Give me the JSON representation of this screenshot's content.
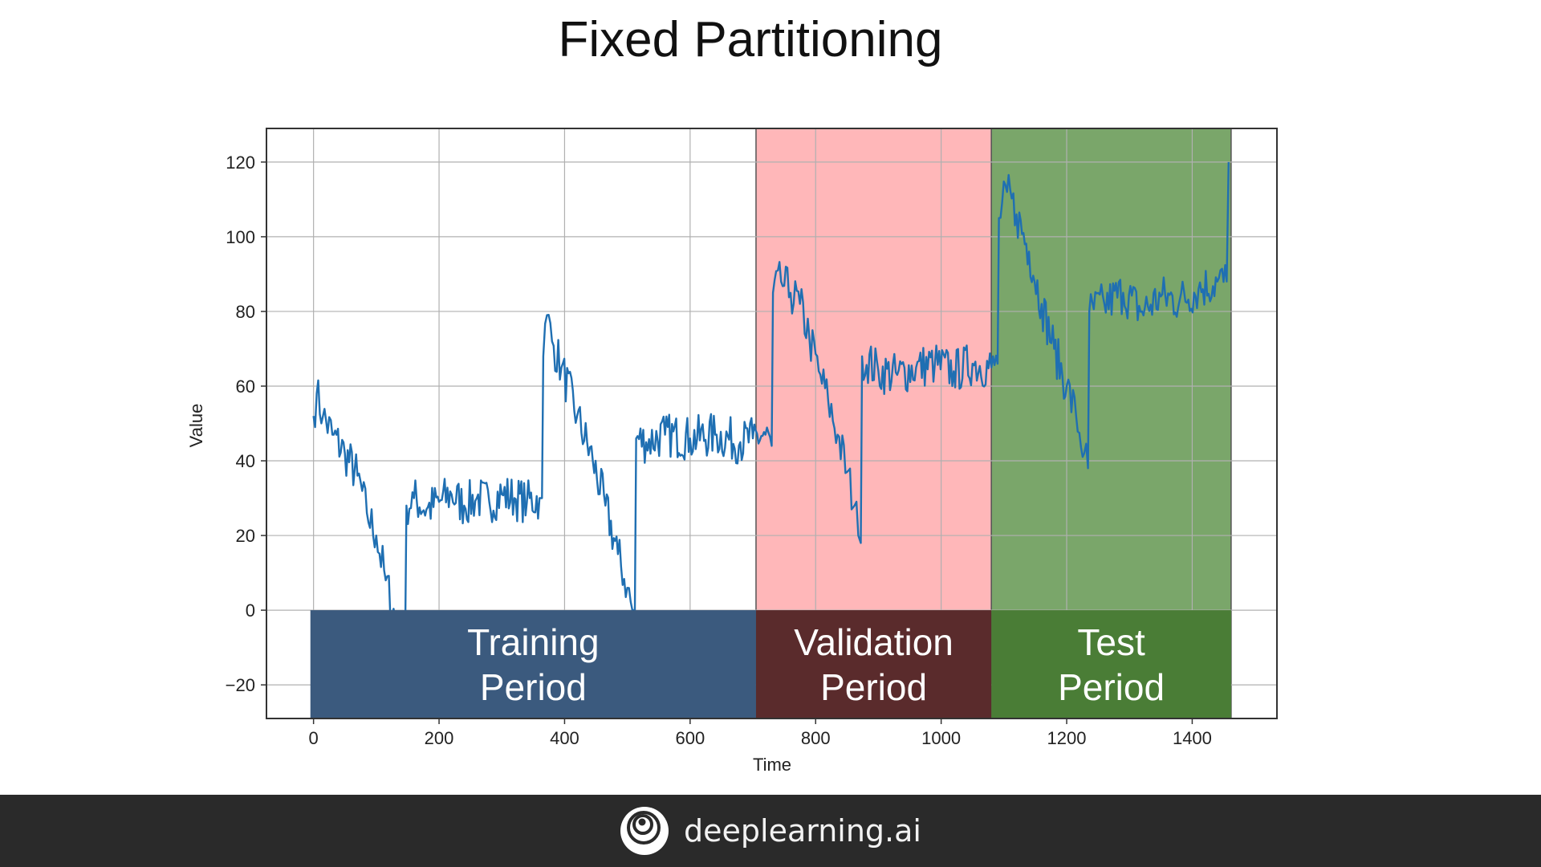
{
  "slide_title": "Fixed Partitioning",
  "footer": {
    "brand": "deeplearning.ai",
    "logo_icon": "deeplearning-logo-icon"
  },
  "chart_data": {
    "type": "line",
    "title": "",
    "xlabel": "Time",
    "ylabel": "Value",
    "xlim": [
      -75,
      1535
    ],
    "ylim": [
      -29,
      129
    ],
    "xticks": [
      0,
      200,
      400,
      600,
      800,
      1000,
      1200,
      1400
    ],
    "xtick_labels": [
      "0",
      "200",
      "400",
      "600",
      "800",
      "1000",
      "1200",
      "1400"
    ],
    "yticks": [
      -20,
      0,
      20,
      40,
      60,
      80,
      100,
      120
    ],
    "ytick_labels": [
      "−20",
      "0",
      "20",
      "40",
      "60",
      "80",
      "100",
      "120"
    ],
    "grid": true,
    "line_color": "#1f6fb2",
    "series": [
      {
        "points": [
          [
            0,
            52
          ],
          [
            5,
            58
          ],
          [
            15,
            52
          ],
          [
            30,
            47
          ],
          [
            50,
            42
          ],
          [
            70,
            36
          ],
          [
            85,
            26
          ],
          [
            100,
            20
          ],
          [
            115,
            8
          ],
          [
            130,
            -2
          ],
          [
            142,
            -21
          ],
          [
            146,
            -8
          ],
          [
            148,
            28
          ],
          [
            160,
            30
          ],
          [
            180,
            27
          ],
          [
            200,
            29
          ],
          [
            220,
            31
          ],
          [
            240,
            28
          ],
          [
            260,
            30
          ],
          [
            280,
            29
          ],
          [
            300,
            31
          ],
          [
            320,
            30
          ],
          [
            340,
            29
          ],
          [
            360,
            30
          ],
          [
            364,
            30
          ],
          [
            366,
            68
          ],
          [
            372,
            79
          ],
          [
            380,
            72
          ],
          [
            395,
            65
          ],
          [
            420,
            52
          ],
          [
            445,
            40
          ],
          [
            465,
            28
          ],
          [
            485,
            15
          ],
          [
            500,
            6
          ],
          [
            508,
            0
          ],
          [
            512,
            0
          ],
          [
            514,
            46
          ],
          [
            530,
            45
          ],
          [
            560,
            47
          ],
          [
            600,
            46
          ],
          [
            640,
            47
          ],
          [
            680,
            45
          ],
          [
            700,
            46
          ],
          [
            720,
            47
          ],
          [
            730,
            44
          ],
          [
            732,
            85
          ],
          [
            745,
            88
          ],
          [
            760,
            85
          ],
          [
            775,
            82
          ],
          [
            790,
            73
          ],
          [
            805,
            64
          ],
          [
            820,
            56
          ],
          [
            835,
            47
          ],
          [
            850,
            37
          ],
          [
            862,
            28
          ],
          [
            868,
            20
          ],
          [
            872,
            18
          ],
          [
            874,
            68
          ],
          [
            900,
            64
          ],
          [
            930,
            63
          ],
          [
            960,
            65
          ],
          [
            990,
            66
          ],
          [
            1020,
            64
          ],
          [
            1050,
            66
          ],
          [
            1080,
            65
          ],
          [
            1090,
            66
          ],
          [
            1092,
            105
          ],
          [
            1105,
            112
          ],
          [
            1120,
            106
          ],
          [
            1140,
            96
          ],
          [
            1160,
            82
          ],
          [
            1180,
            70
          ],
          [
            1200,
            60
          ],
          [
            1215,
            52
          ],
          [
            1228,
            42
          ],
          [
            1234,
            38
          ],
          [
            1236,
            80
          ],
          [
            1260,
            82
          ],
          [
            1290,
            85
          ],
          [
            1320,
            80
          ],
          [
            1350,
            84
          ],
          [
            1380,
            83
          ],
          [
            1410,
            86
          ],
          [
            1440,
            88
          ],
          [
            1455,
            88
          ],
          [
            1458,
            120
          ]
        ]
      }
    ],
    "periods": [
      {
        "name": "Training",
        "label_line1": "Training",
        "label_line2": "Period",
        "start": -5,
        "end": 705,
        "shade_color": "",
        "banner_color": "#3b5a7e"
      },
      {
        "name": "Validation",
        "label_line1": "Validation",
        "label_line2": "Period",
        "start": 705,
        "end": 1080,
        "shade_color": "#ffb7b9",
        "banner_color": "#5a2b2c"
      },
      {
        "name": "Test",
        "label_line1": "Test",
        "label_line2": "Period",
        "start": 1080,
        "end": 1462,
        "shade_color": "#7aa66a",
        "banner_color": "#4a7d36"
      }
    ]
  }
}
